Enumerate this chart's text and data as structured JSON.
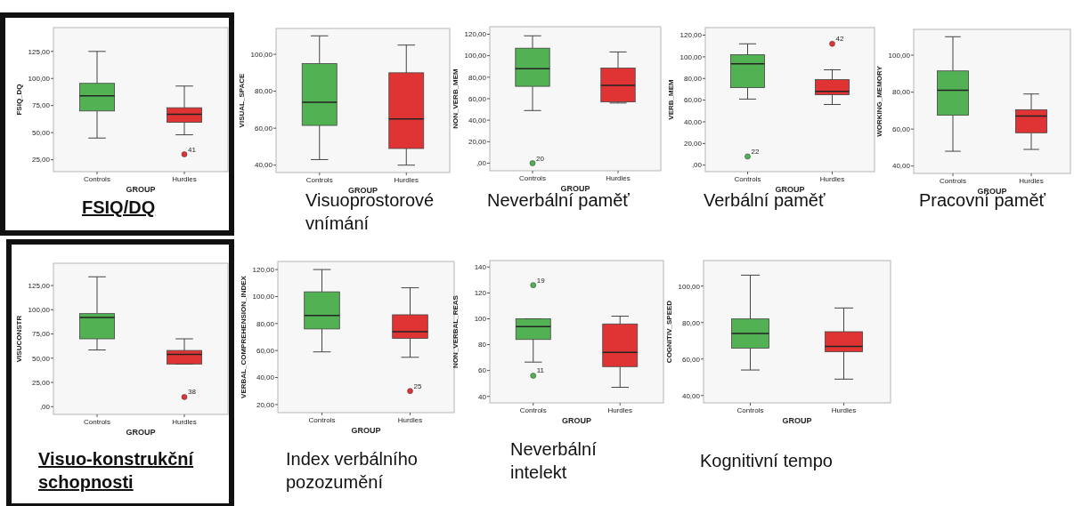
{
  "chart_data": [
    {
      "type": "box",
      "title": "FSIQ/DQ",
      "xlabel": "GROUP",
      "ylabel": "FSIQ_DQ",
      "categories": [
        "Controls",
        "Hurdles"
      ],
      "colors": [
        "#52b152",
        "#e03434"
      ],
      "boxes": [
        {
          "low": 45,
          "q1": 70,
          "median": 84,
          "q3": 95.5,
          "high": 125
        },
        {
          "low": 48,
          "q1": 59.5,
          "median": 67,
          "q3": 73,
          "high": 93,
          "outliers": [
            30
          ]
        }
      ],
      "ylim": [
        14,
        147
      ],
      "yticks": [
        {
          "value": 25,
          "label": "25,00"
        },
        {
          "value": 50,
          "label": "50,00"
        },
        {
          "value": 75,
          "label": "75,00"
        },
        {
          "value": 100,
          "label": "100,00"
        },
        {
          "value": 125,
          "label": "125,00"
        }
      ],
      "annotations": [
        "41"
      ]
    },
    {
      "type": "box",
      "title": "Visuoprostorové vnímání",
      "xlabel": "GROUP",
      "ylabel": "VISUAL_SPACE",
      "categories": [
        "Controls",
        "Hurdles"
      ],
      "colors": [
        "#52b152",
        "#e03434"
      ],
      "boxes": [
        {
          "low": 43,
          "q1": 61.5,
          "median": 74,
          "q3": 95,
          "high": 110
        },
        {
          "low": 40,
          "q1": 49,
          "median": 65,
          "q3": 90,
          "high": 105
        }
      ],
      "ylim": [
        36,
        114
      ],
      "yticks": [
        {
          "value": 40,
          "label": "40,00"
        },
        {
          "value": 60,
          "label": "60,00"
        },
        {
          "value": 80,
          "label": "80,00"
        },
        {
          "value": 100,
          "label": "100,00"
        }
      ]
    },
    {
      "type": "box",
      "title": "Neverbální paměť",
      "xlabel": "GROUP",
      "ylabel": "NON_VERB_MEM",
      "categories": [
        "Controls",
        "Hurdles"
      ],
      "colors": [
        "#52b152",
        "#e03434"
      ],
      "boxes": [
        {
          "low": 49,
          "q1": 71.5,
          "median": 88,
          "q3": 107,
          "high": 118.5,
          "outliers": [
            0
          ]
        },
        {
          "low": 56,
          "q1": 57,
          "median": 72.5,
          "q3": 88.5,
          "high": 103.5
        }
      ],
      "ylim": [
        -7,
        127
      ],
      "yticks": [
        {
          "value": 0,
          "label": ",00"
        },
        {
          "value": 20,
          "label": "20,00"
        },
        {
          "value": 40,
          "label": "40,00"
        },
        {
          "value": 60,
          "label": "60,00"
        },
        {
          "value": 80,
          "label": "80,00"
        },
        {
          "value": 100,
          "label": "100,00"
        },
        {
          "value": 120,
          "label": "120,00"
        }
      ],
      "annotations": [
        "20"
      ]
    },
    {
      "type": "box",
      "title": "Verbální paměť",
      "xlabel": "GROUP",
      "ylabel": "VERB_MEM",
      "categories": [
        "Controls",
        "Hurdles"
      ],
      "colors": [
        "#52b152",
        "#e03434"
      ],
      "boxes": [
        {
          "low": 61,
          "q1": 71.5,
          "median": 93.5,
          "q3": 102,
          "high": 112,
          "outliers": [
            8
          ]
        },
        {
          "low": 56,
          "q1": 65,
          "median": 68,
          "q3": 79,
          "high": 88,
          "outliers": [
            112
          ]
        }
      ],
      "ylim": [
        -6,
        127
      ],
      "yticks": [
        {
          "value": 0,
          "label": ",00"
        },
        {
          "value": 20,
          "label": "20,00"
        },
        {
          "value": 40,
          "label": "40,00"
        },
        {
          "value": 60,
          "label": "60,00"
        },
        {
          "value": 80,
          "label": "80,00"
        },
        {
          "value": 100,
          "label": "100,00"
        },
        {
          "value": 120,
          "label": "120,00"
        }
      ],
      "annotations": [
        "22",
        "42"
      ]
    },
    {
      "type": "box",
      "title": "Pracovní paměť",
      "xlabel": "GROUP",
      "ylabel": "WORKING_MEMORY",
      "categories": [
        "Controls",
        "Hurdles"
      ],
      "colors": [
        "#52b152",
        "#e03434"
      ],
      "boxes": [
        {
          "low": 48,
          "q1": 67.5,
          "median": 81,
          "q3": 91.5,
          "high": 110
        },
        {
          "low": 49,
          "q1": 58,
          "median": 67,
          "q3": 70.5,
          "high": 79
        }
      ],
      "ylim": [
        36,
        114
      ],
      "yticks": [
        {
          "value": 40,
          "label": "40,00"
        },
        {
          "value": 60,
          "label": "60,00"
        },
        {
          "value": 80,
          "label": "80,00"
        },
        {
          "value": 100,
          "label": "100,00"
        }
      ]
    },
    {
      "type": "box",
      "title": "Visuo-konstrukční schopnosti",
      "xlabel": "GROUP",
      "ylabel": "VISUCONSTR",
      "categories": [
        "Controls",
        "Hurdles"
      ],
      "colors": [
        "#52b152",
        "#e03434"
      ],
      "boxes": [
        {
          "low": 58.5,
          "q1": 70,
          "median": 92,
          "q3": 96,
          "high": 134
        },
        {
          "low": 44,
          "q1": 44,
          "median": 54,
          "q3": 58,
          "high": 70,
          "outliers": [
            10
          ]
        }
      ],
      "ylim": [
        -8,
        148
      ],
      "yticks": [
        {
          "value": 0,
          "label": ",00"
        },
        {
          "value": 25,
          "label": "25,00"
        },
        {
          "value": 50,
          "label": "50,00"
        },
        {
          "value": 75,
          "label": "75,00"
        },
        {
          "value": 100,
          "label": "100,00"
        },
        {
          "value": 125,
          "label": "125,00"
        }
      ],
      "annotations": [
        "38"
      ]
    },
    {
      "type": "box",
      "title": "Index verbálního pozozumění",
      "xlabel": "GROUP",
      "ylabel": "VERBAL_COMPREHENSION_INDEX",
      "categories": [
        "Controls",
        "Hurdles"
      ],
      "colors": [
        "#52b152",
        "#e03434"
      ],
      "boxes": [
        {
          "low": 59,
          "q1": 76,
          "median": 86,
          "q3": 103.5,
          "high": 120
        },
        {
          "low": 55,
          "q1": 69,
          "median": 74,
          "q3": 86.5,
          "high": 106.5,
          "outliers": [
            30
          ]
        }
      ],
      "ylim": [
        14,
        126
      ],
      "yticks": [
        {
          "value": 20,
          "label": "20,00"
        },
        {
          "value": 40,
          "label": "40,00"
        },
        {
          "value": 60,
          "label": "60,00"
        },
        {
          "value": 80,
          "label": "80,00"
        },
        {
          "value": 100,
          "label": "100,00"
        },
        {
          "value": 120,
          "label": "120,00"
        }
      ],
      "annotations": [
        "25"
      ]
    },
    {
      "type": "box",
      "title": "Neverbální intelekt",
      "xlabel": "GROUP",
      "ylabel": "NON_VERBAL_REAS",
      "categories": [
        "Controls",
        "Hurdles"
      ],
      "colors": [
        "#52b152",
        "#e03434"
      ],
      "boxes": [
        {
          "low": 66.5,
          "q1": 84,
          "median": 94,
          "q3": 100,
          "high": 100,
          "outliers": [
            126,
            56
          ]
        },
        {
          "low": 47,
          "q1": 63,
          "median": 74,
          "q3": 96,
          "high": 102
        }
      ],
      "ylim": [
        35,
        145
      ],
      "yticks": [
        40,
        60,
        80,
        100,
        120,
        140
      ],
      "annotations": [
        "19",
        "11"
      ]
    },
    {
      "type": "box",
      "title": "Kognitivní tempo",
      "xlabel": "GROUP",
      "ylabel": "COGNITIV_SPEED",
      "categories": [
        "Controls",
        "Hurdles"
      ],
      "colors": [
        "#52b152",
        "#e03434"
      ],
      "boxes": [
        {
          "low": 54,
          "q1": 66,
          "median": 74,
          "q3": 82,
          "high": 106
        },
        {
          "low": 49,
          "q1": 64,
          "median": 67,
          "q3": 75,
          "high": 88
        }
      ],
      "ylim": [
        36,
        114
      ],
      "yticks": [
        {
          "value": 40,
          "label": "40,00"
        },
        {
          "value": 60,
          "label": "60,00"
        },
        {
          "value": 80,
          "label": "80,00"
        },
        {
          "value": 100,
          "label": "100,00"
        }
      ]
    }
  ]
}
